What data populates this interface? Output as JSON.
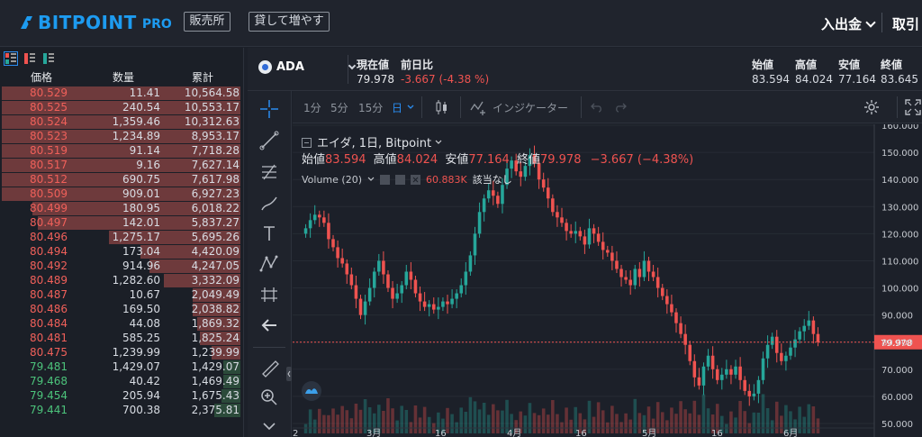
{
  "header": {
    "brand": "BITPOINT",
    "brand_suffix": "PRO",
    "btn_hanbaijo": "販売所",
    "btn_kashite": "貸して増やす",
    "deposit_menu": "入出金",
    "trade_menu": "取引"
  },
  "book": {
    "headers": [
      "価格",
      "数量",
      "累計"
    ],
    "asks": [
      {
        "price": "80.529",
        "qty": "11.41",
        "total": "10,564.58",
        "depth": 1.0
      },
      {
        "price": "80.525",
        "qty": "240.54",
        "total": "10,553.17",
        "depth": 1.0
      },
      {
        "price": "80.524",
        "qty": "1,359.46",
        "total": "10,312.63",
        "depth": 1.0
      },
      {
        "price": "80.523",
        "qty": "1,234.89",
        "total": "8,953.17",
        "depth": 1.0
      },
      {
        "price": "80.519",
        "qty": "91.14",
        "total": "7,718.28",
        "depth": 1.0
      },
      {
        "price": "80.517",
        "qty": "9.16",
        "total": "7,627.14",
        "depth": 1.0
      },
      {
        "price": "80.512",
        "qty": "690.75",
        "total": "7,617.98",
        "depth": 1.0
      },
      {
        "price": "80.509",
        "qty": "909.01",
        "total": "6,927.23",
        "depth": 1.0
      },
      {
        "price": "80.499",
        "qty": "180.95",
        "total": "6,018.22",
        "depth": 0.87
      },
      {
        "price": "80.497",
        "qty": "142.01",
        "total": "5,837.27",
        "depth": 0.85
      },
      {
        "price": "80.496",
        "qty": "1,275.17",
        "total": "5,695.26",
        "depth": 0.55
      },
      {
        "price": "80.494",
        "qty": "173.04",
        "total": "4,420.09",
        "depth": 0.42
      },
      {
        "price": "80.492",
        "qty": "914.96",
        "total": "4,247.05",
        "depth": 0.38
      },
      {
        "price": "80.489",
        "qty": "1,282.60",
        "total": "3,332.09",
        "depth": 0.32
      },
      {
        "price": "80.487",
        "qty": "10.67",
        "total": "2,049.49",
        "depth": 0.2
      },
      {
        "price": "80.486",
        "qty": "169.50",
        "total": "2,038.82",
        "depth": 0.2
      },
      {
        "price": "80.484",
        "qty": "44.08",
        "total": "1,869.32",
        "depth": 0.18
      },
      {
        "price": "80.481",
        "qty": "585.25",
        "total": "1,825.24",
        "depth": 0.17
      },
      {
        "price": "80.475",
        "qty": "1,239.99",
        "total": "1,239.99",
        "depth": 0.12
      }
    ],
    "bids": [
      {
        "price": "79.481",
        "qty": "1,429.07",
        "total": "1,429.07",
        "depth": 0.07
      },
      {
        "price": "79.468",
        "qty": "40.42",
        "total": "1,469.49",
        "depth": 0.07
      },
      {
        "price": "79.454",
        "qty": "205.94",
        "total": "1,675.43",
        "depth": 0.08
      },
      {
        "price": "79.441",
        "qty": "700.38",
        "total": "2,375.81",
        "depth": 0.11
      }
    ]
  },
  "ticker": {
    "symbol": "ADA",
    "current_label": "現在値",
    "current_value": "79.978",
    "change_label": "前日比",
    "change_value": "-3.667 (-4.38 %)",
    "open_label": "始値",
    "open_value": "83.594",
    "high_label": "高値",
    "high_value": "84.024",
    "low_label": "安値",
    "low_value": "77.164",
    "close_label": "終値",
    "close_value": "83.645"
  },
  "chart_toolbar": {
    "tf_1m": "1分",
    "tf_5m": "5分",
    "tf_15m": "15分",
    "tf_day": "日",
    "indicators": "インジケーター"
  },
  "chart_legend": {
    "title": "エイダ, 1日, Bitpoint",
    "o_label": "始値",
    "o_value": "83.594",
    "h_label": "高値",
    "h_value": "84.024",
    "l_label": "安値",
    "l_value": "77.164",
    "c_label": "終値",
    "c_value": "79.978",
    "chg_value": "−3.667 (−4.38%)",
    "volume_label": "Volume (20)",
    "volume_value": "60.883K",
    "volume_ma_text": "該当なし"
  },
  "colors": {
    "up": "#26a69a",
    "down": "#ef5350",
    "accent": "#2a8cf0",
    "ask": "#f0605a",
    "bid": "#4cc37b"
  },
  "chart_data": {
    "type": "candlestick",
    "ylim": [
      45,
      163
    ],
    "y_ticks": [
      "160.000",
      "150.000",
      "140.000",
      "130.000",
      "120.000",
      "110.000",
      "100.000",
      "90.000",
      "80.000",
      "70.000",
      "60.000",
      "50.000"
    ],
    "x_ticks": [
      "2",
      "3月",
      "16",
      "4月",
      "16",
      "5月",
      "16",
      "6月"
    ],
    "last_price_label": "79.978",
    "last_price": 79.978,
    "closes": [
      122,
      125,
      127,
      126,
      124,
      118,
      115,
      111,
      109,
      105,
      101,
      96,
      90,
      95,
      100,
      106,
      110,
      105,
      100,
      96,
      98,
      101,
      106,
      103,
      98,
      95,
      93,
      94,
      92,
      93,
      95,
      94,
      96,
      98,
      101,
      106,
      112,
      120,
      128,
      133,
      136,
      134,
      131,
      138,
      144,
      147,
      143,
      141,
      145,
      149,
      146,
      140,
      137,
      133,
      128,
      126,
      124,
      121,
      120,
      121,
      119,
      116,
      122,
      120,
      117,
      114,
      113,
      110,
      107,
      104,
      103,
      101,
      107,
      104,
      110,
      106,
      104,
      100,
      97,
      94,
      91,
      87,
      83,
      79,
      73,
      67,
      64,
      71,
      75,
      70,
      66,
      68,
      70,
      68,
      71,
      66,
      62,
      60,
      61,
      66,
      74,
      79,
      82,
      76,
      73,
      75,
      78,
      81,
      84,
      86,
      88,
      83,
      80
    ]
  }
}
